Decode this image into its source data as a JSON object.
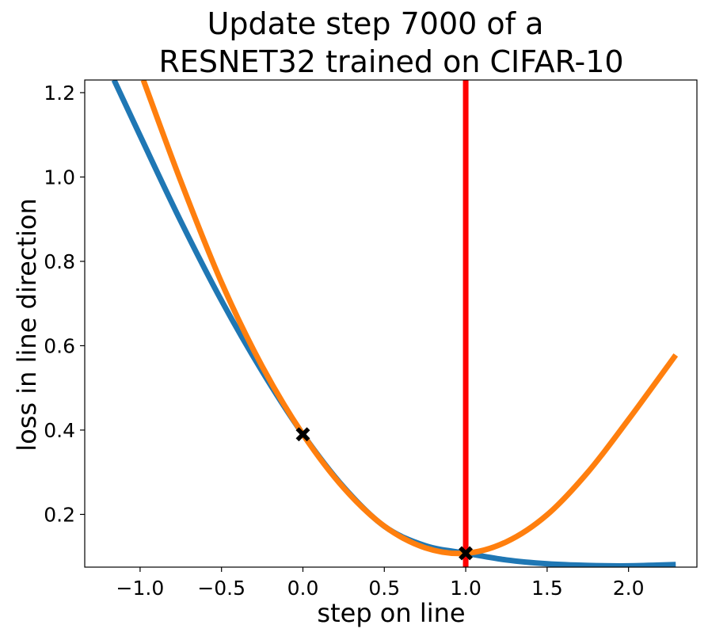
{
  "chart_data": {
    "type": "line",
    "title": "Update step 7000 of a",
    "subtitle": "RESNET32 trained on CIFAR-10",
    "xlabel": "step on line",
    "ylabel": "loss in line direction",
    "xlim": [
      -1.34,
      2.42
    ],
    "ylim": [
      0.075,
      1.23
    ],
    "grid": false,
    "x_ticks": [
      {
        "value": -1.0,
        "label": "−1.0"
      },
      {
        "value": -0.5,
        "label": "−0.5"
      },
      {
        "value": 0.0,
        "label": "0.0"
      },
      {
        "value": 0.5,
        "label": "0.5"
      },
      {
        "value": 1.0,
        "label": "1.0"
      },
      {
        "value": 1.5,
        "label": "1.5"
      },
      {
        "value": 2.0,
        "label": "2.0"
      }
    ],
    "y_ticks": [
      {
        "value": 0.2,
        "label": "0.2"
      },
      {
        "value": 0.4,
        "label": "0.4"
      },
      {
        "value": 0.6,
        "label": "0.6"
      },
      {
        "value": 0.8,
        "label": "0.8"
      },
      {
        "value": 1.0,
        "label": "1.0"
      },
      {
        "value": 1.2,
        "label": "1.2"
      }
    ],
    "series": [
      {
        "color": "#1f77b4",
        "x": [
          -1.16,
          -1.0,
          -0.75,
          -0.5,
          -0.25,
          0.0,
          0.25,
          0.5,
          0.75,
          1.0,
          1.25,
          1.5,
          1.75,
          2.0,
          2.29
        ],
        "y": [
          1.23,
          1.098,
          0.895,
          0.707,
          0.539,
          0.39,
          0.265,
          0.172,
          0.126,
          0.108,
          0.092,
          0.083,
          0.079,
          0.078,
          0.081
        ]
      },
      {
        "color": "#ff7f0e",
        "x": [
          -0.98,
          -0.75,
          -0.5,
          -0.25,
          0.0,
          0.25,
          0.5,
          0.75,
          1.0,
          1.25,
          1.5,
          1.75,
          2.0,
          2.29
        ],
        "y": [
          1.23,
          0.99,
          0.75,
          0.551,
          0.39,
          0.263,
          0.172,
          0.121,
          0.108,
          0.135,
          0.199,
          0.3,
          0.425,
          0.578
        ]
      }
    ],
    "vertical_line": {
      "x": 1.0,
      "color": "#ff0000"
    },
    "markers": [
      {
        "x": 0.0,
        "y": 0.39,
        "symbol": "X",
        "color": "#000000"
      },
      {
        "x": 1.0,
        "y": 0.108,
        "symbol": "X",
        "color": "#000000"
      }
    ]
  }
}
